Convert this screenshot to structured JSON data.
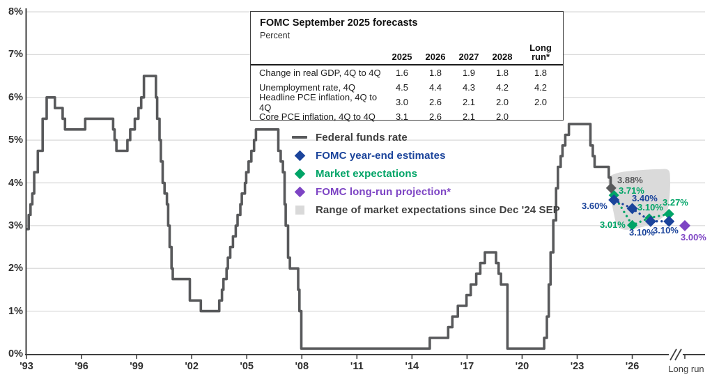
{
  "chart": {
    "y_axis": {
      "tick_labels": [
        "8%",
        "7%",
        "6%",
        "5%",
        "4%",
        "3%",
        "2%",
        "1%",
        "0%"
      ],
      "max_pct": 8,
      "min_pct": 0
    },
    "x_axis": {
      "tick_labels": [
        "'93",
        "'96",
        "'99",
        "'02",
        "'05",
        "'08",
        "'11",
        "'14",
        "'17",
        "'20",
        "'23",
        "'26"
      ],
      "long_run_label": "Long run"
    }
  },
  "table": {
    "title": "FOMC September 2025 forecasts",
    "subtitle": "Percent",
    "columns": [
      "2025",
      "2026",
      "2027",
      "2028",
      "Long run*"
    ],
    "rows": [
      {
        "label": "Change in real GDP, 4Q to 4Q",
        "values": [
          "1.6",
          "1.8",
          "1.9",
          "1.8",
          "1.8"
        ]
      },
      {
        "label": "Unemployment rate, 4Q",
        "values": [
          "4.5",
          "4.4",
          "4.3",
          "4.2",
          "4.2"
        ]
      },
      {
        "label": "Headline PCE inflation, 4Q to 4Q",
        "values": [
          "3.0",
          "2.6",
          "2.1",
          "2.0",
          "2.0"
        ]
      },
      {
        "label": "Core PCE inflation, 4Q to 4Q",
        "values": [
          "3.1",
          "2.6",
          "2.1",
          "2.0",
          ""
        ]
      }
    ]
  },
  "legend": [
    {
      "label": "Federal funds rate",
      "marker": "line",
      "color": "#58595b",
      "text_color": "#404040"
    },
    {
      "label": "FOMC year-end estimates",
      "marker": "diamond",
      "color": "#1b449b",
      "text_color": "#1b449b"
    },
    {
      "label": "Market expectations",
      "marker": "diamond",
      "color": "#00a467",
      "text_color": "#00a467"
    },
    {
      "label": "FOMC long-run projection*",
      "marker": "diamond",
      "color": "#7d44c4",
      "text_color": "#7d44c4"
    },
    {
      "label": "Range of market expectations since Dec '24 SEP",
      "marker": "square",
      "color": "#d9d9d9",
      "text_color": "#404040"
    }
  ],
  "chart_data": {
    "type": "line",
    "title": "",
    "ylabel": "Percent",
    "ylim": [
      0,
      8
    ],
    "grid": true,
    "x_tick_years": [
      "'93",
      "'96",
      "'99",
      "'02",
      "'05",
      "'08",
      "'11",
      "'14",
      "'17",
      "'20",
      "'23",
      "'26",
      "Long run"
    ],
    "federal_funds_rate_steps": [
      [
        1994.0,
        2.92
      ],
      [
        1994.12,
        3.25
      ],
      [
        1994.22,
        3.5
      ],
      [
        1994.32,
        3.75
      ],
      [
        1994.42,
        4.25
      ],
      [
        1994.62,
        4.75
      ],
      [
        1994.88,
        5.5
      ],
      [
        1995.1,
        6.0
      ],
      [
        1995.55,
        5.75
      ],
      [
        1995.97,
        5.5
      ],
      [
        1996.1,
        5.25
      ],
      [
        1997.2,
        5.5
      ],
      [
        1998.72,
        5.25
      ],
      [
        1998.8,
        5.0
      ],
      [
        1998.9,
        4.75
      ],
      [
        1999.5,
        5.0
      ],
      [
        1999.65,
        5.25
      ],
      [
        1999.9,
        5.5
      ],
      [
        2000.1,
        5.75
      ],
      [
        2000.25,
        6.0
      ],
      [
        2000.4,
        6.5
      ],
      [
        2001.05,
        6.0
      ],
      [
        2001.12,
        5.5
      ],
      [
        2001.25,
        5.0
      ],
      [
        2001.32,
        4.5
      ],
      [
        2001.42,
        4.0
      ],
      [
        2001.52,
        3.75
      ],
      [
        2001.65,
        3.5
      ],
      [
        2001.72,
        3.0
      ],
      [
        2001.8,
        2.5
      ],
      [
        2001.9,
        2.0
      ],
      [
        2001.97,
        1.75
      ],
      [
        2002.9,
        1.25
      ],
      [
        2003.5,
        1.0
      ],
      [
        2004.5,
        1.25
      ],
      [
        2004.65,
        1.5
      ],
      [
        2004.73,
        1.75
      ],
      [
        2004.9,
        2.0
      ],
      [
        2004.97,
        2.25
      ],
      [
        2005.1,
        2.5
      ],
      [
        2005.25,
        2.75
      ],
      [
        2005.4,
        3.0
      ],
      [
        2005.5,
        3.25
      ],
      [
        2005.65,
        3.5
      ],
      [
        2005.73,
        3.75
      ],
      [
        2005.9,
        4.0
      ],
      [
        2005.97,
        4.25
      ],
      [
        2006.1,
        4.5
      ],
      [
        2006.25,
        4.75
      ],
      [
        2006.4,
        5.0
      ],
      [
        2006.5,
        5.25
      ],
      [
        2007.72,
        4.75
      ],
      [
        2007.85,
        4.5
      ],
      [
        2007.97,
        4.25
      ],
      [
        2008.06,
        3.5
      ],
      [
        2008.12,
        3.0
      ],
      [
        2008.25,
        2.25
      ],
      [
        2008.35,
        2.0
      ],
      [
        2008.8,
        1.5
      ],
      [
        2008.87,
        1.0
      ],
      [
        2008.97,
        0.125
      ],
      [
        2015.97,
        0.375
      ],
      [
        2016.97,
        0.625
      ],
      [
        2017.2,
        0.875
      ],
      [
        2017.5,
        1.125
      ],
      [
        2017.97,
        1.375
      ],
      [
        2018.2,
        1.625
      ],
      [
        2018.5,
        1.875
      ],
      [
        2018.72,
        2.125
      ],
      [
        2018.97,
        2.375
      ],
      [
        2019.58,
        2.125
      ],
      [
        2019.72,
        1.875
      ],
      [
        2019.85,
        1.625
      ],
      [
        2020.2,
        0.125
      ],
      [
        2022.2,
        0.375
      ],
      [
        2022.35,
        0.875
      ],
      [
        2022.45,
        1.625
      ],
      [
        2022.55,
        2.375
      ],
      [
        2022.7,
        3.125
      ],
      [
        2022.85,
        3.875
      ],
      [
        2022.95,
        4.375
      ],
      [
        2023.1,
        4.625
      ],
      [
        2023.2,
        4.875
      ],
      [
        2023.35,
        5.125
      ],
      [
        2023.55,
        5.375
      ],
      [
        2024.72,
        4.875
      ],
      [
        2024.85,
        4.625
      ],
      [
        2024.95,
        4.375
      ],
      [
        2025.72,
        4.125
      ],
      [
        2025.82,
        3.875
      ]
    ],
    "line_end_year": 2025.85,
    "current_rate_marker": {
      "value": 3.88,
      "label": "3.88%",
      "color": "#58595b"
    },
    "series": [
      {
        "name": "FOMC year-end estimates",
        "color": "#1b449b",
        "points": [
          {
            "year": 2025,
            "value": 3.6,
            "label": "3.60%"
          },
          {
            "year": 2026,
            "value": 3.4,
            "label": "3.40%"
          },
          {
            "year": 2027,
            "value": 3.1,
            "label": "3.10%"
          },
          {
            "year": 2028,
            "value": 3.1,
            "label": "3.10%"
          }
        ]
      },
      {
        "name": "Market expectations",
        "color": "#00a467",
        "points": [
          {
            "year": 2025,
            "value": 3.71,
            "label": "3.71%"
          },
          {
            "year": 2026,
            "value": 3.01,
            "label": "3.01%"
          },
          {
            "year": 2027,
            "value": 3.1,
            "label": "3.10%"
          },
          {
            "year": 2028,
            "value": 3.27,
            "label": "3.27%"
          }
        ]
      },
      {
        "name": "FOMC long-run projection",
        "color": "#7d44c4",
        "points": [
          {
            "year": "long_run",
            "value": 3.0,
            "label": "3.00%"
          }
        ]
      }
    ],
    "range_region_outline_year_pct": [
      [
        2025.6,
        4.1
      ],
      [
        2026.0,
        4.22
      ],
      [
        2026.6,
        4.27
      ],
      [
        2027.4,
        4.3
      ],
      [
        2028.3,
        4.32
      ],
      [
        2028.85,
        4.3
      ],
      [
        2028.95,
        4.05
      ],
      [
        2028.9,
        3.6
      ],
      [
        2028.75,
        3.3
      ],
      [
        2028.3,
        3.12
      ],
      [
        2027.6,
        2.99
      ],
      [
        2026.9,
        2.92
      ],
      [
        2026.4,
        2.91
      ],
      [
        2026.05,
        3.02
      ],
      [
        2025.85,
        3.35
      ],
      [
        2025.7,
        3.72
      ]
    ],
    "legend_position": "center-left",
    "colors": {
      "line": "#58595b",
      "fomc_blue": "#1b449b",
      "market_green": "#00a467",
      "longrun_purple": "#7d44c4",
      "range_gray": "#d9d9d9"
    }
  }
}
